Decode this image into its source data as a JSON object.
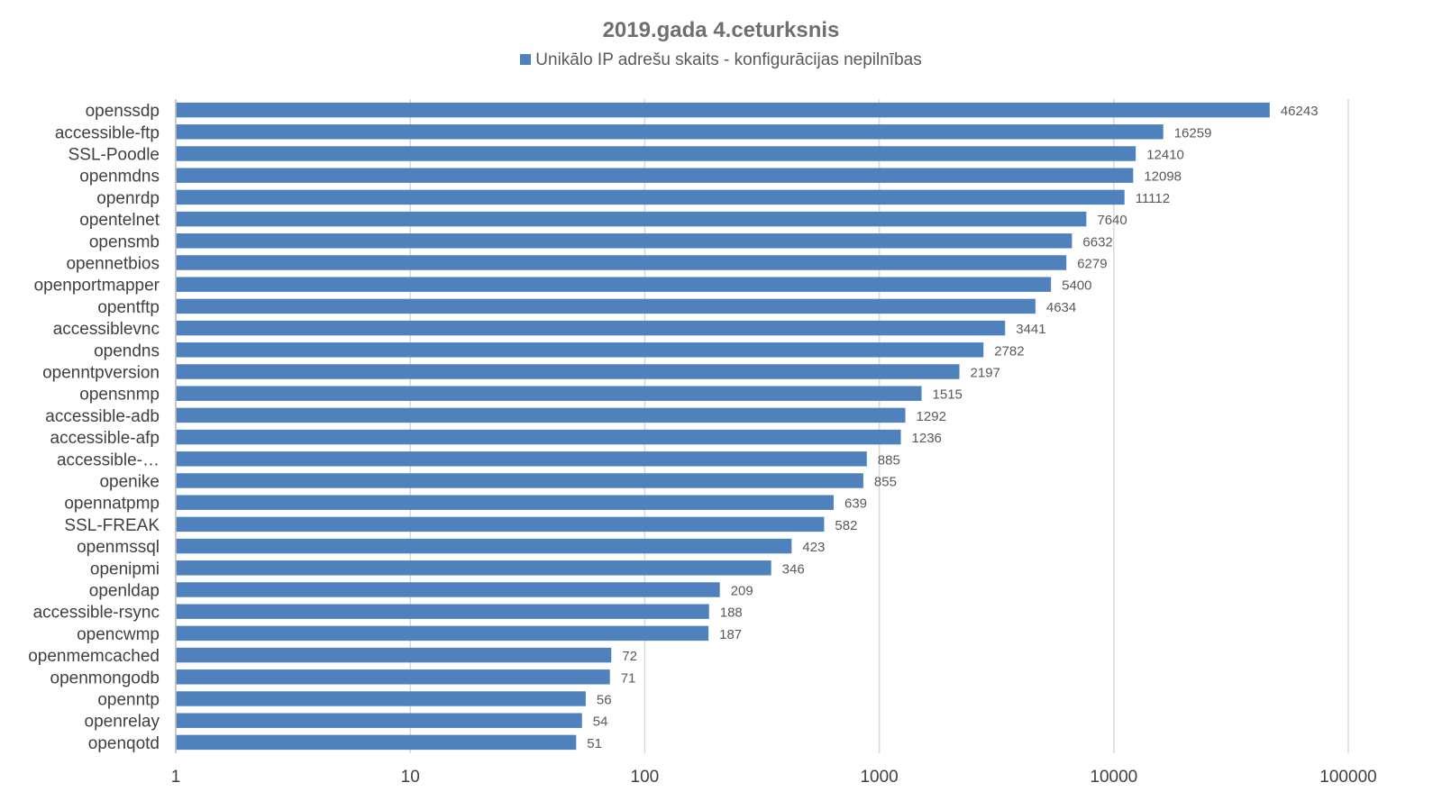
{
  "chart_data": {
    "type": "bar",
    "orientation": "horizontal",
    "title": "2019.gada 4.ceturksnis",
    "legend": {
      "position": "top",
      "label": "Unikālo IP adrešu skaits  -  konfigurācijas nepilnības"
    },
    "xscale": "log",
    "xlim": [
      1,
      100000
    ],
    "x_ticks": [
      "1",
      "10",
      "100",
      "1000",
      "10000",
      "100000"
    ],
    "grid": true,
    "bar_color": "#4f81bd",
    "categories": [
      "openssdp",
      "accessible-ftp",
      "SSL-Poodle",
      "openmdns",
      "openrdp",
      "opentelnet",
      "opensmb",
      "opennetbios",
      "openportmapper",
      "opentftp",
      "accessiblevnc",
      "opendns",
      "openntpversion",
      "opensnmp",
      "accessible-adb",
      "accessible-afp",
      "accessible-…",
      "openike",
      "opennatpmp",
      "SSL-FREAK",
      "openmssql",
      "openipmi",
      "openldap",
      "accessible-rsync",
      "opencwmp",
      "openmemcached",
      "openmongodb",
      "openntp",
      "openrelay",
      "openqotd"
    ],
    "values": [
      46243,
      16259,
      12410,
      12098,
      11112,
      7640,
      6632,
      6279,
      5400,
      4634,
      3441,
      2782,
      2197,
      1515,
      1292,
      1236,
      885,
      855,
      639,
      582,
      423,
      346,
      209,
      188,
      187,
      72,
      71,
      56,
      54,
      51
    ]
  }
}
